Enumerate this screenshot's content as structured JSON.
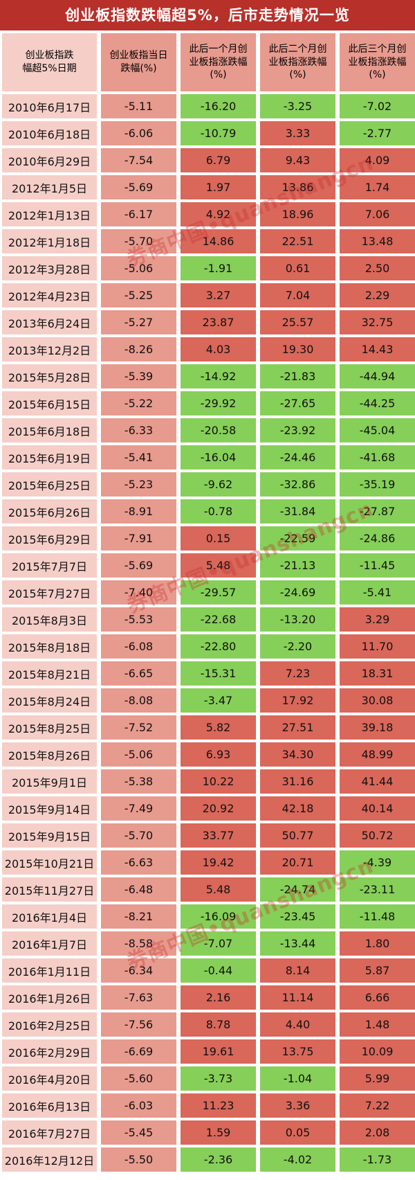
{
  "title": "创业板指数跌幅超5%，后市走势情况一览",
  "headers": [
    "创业板指跌\n幅超5%日期",
    "创业板指当日\n跌幅(%)",
    "此后一个月创\n业板指涨跌幅\n(%)",
    "此后二个月创\n业板指涨跌幅\n(%)",
    "此后三个月创\n业板指涨跌幅\n(%)"
  ],
  "watermark": "券商中国•quanshangcn",
  "colors": {
    "title_bg": "#b8302a",
    "date_cell": "#f5cec7",
    "drop_cell": "#e79a8e",
    "positive_cell": "#d9675a",
    "negative_cell": "#86cf58"
  },
  "rows": [
    {
      "date": "2010年6月17日",
      "drop": "-5.11",
      "m1": "-16.20",
      "m2": "-3.25",
      "m3": "-7.02"
    },
    {
      "date": "2010年6月18日",
      "drop": "-6.06",
      "m1": "-10.79",
      "m2": "3.33",
      "m3": "-2.77"
    },
    {
      "date": "2010年6月29日",
      "drop": "-7.54",
      "m1": "6.79",
      "m2": "9.43",
      "m3": "4.09"
    },
    {
      "date": "2012年1月5日",
      "drop": "-5.69",
      "m1": "1.97",
      "m2": "13.86",
      "m3": "1.74"
    },
    {
      "date": "2012年1月13日",
      "drop": "-6.17",
      "m1": "4.92",
      "m2": "18.96",
      "m3": "7.06"
    },
    {
      "date": "2012年1月18日",
      "drop": "-5.70",
      "m1": "14.86",
      "m2": "22.51",
      "m3": "13.48"
    },
    {
      "date": "2012年3月28日",
      "drop": "-5.06",
      "m1": "-1.91",
      "m2": "0.61",
      "m3": "2.50"
    },
    {
      "date": "2012年4月23日",
      "drop": "-5.25",
      "m1": "3.27",
      "m2": "7.04",
      "m3": "2.29"
    },
    {
      "date": "2013年6月24日",
      "drop": "-5.27",
      "m1": "23.87",
      "m2": "25.57",
      "m3": "32.75"
    },
    {
      "date": "2013年12月2日",
      "drop": "-8.26",
      "m1": "4.03",
      "m2": "19.30",
      "m3": "14.43"
    },
    {
      "date": "2015年5月28日",
      "drop": "-5.39",
      "m1": "-14.92",
      "m2": "-21.83",
      "m3": "-44.94"
    },
    {
      "date": "2015年6月15日",
      "drop": "-5.22",
      "m1": "-29.92",
      "m2": "-27.65",
      "m3": "-44.25"
    },
    {
      "date": "2015年6月18日",
      "drop": "-6.33",
      "m1": "-20.58",
      "m2": "-23.92",
      "m3": "-45.04"
    },
    {
      "date": "2015年6月19日",
      "drop": "-5.41",
      "m1": "-16.04",
      "m2": "-24.46",
      "m3": "-41.68"
    },
    {
      "date": "2015年6月25日",
      "drop": "-5.23",
      "m1": "-9.62",
      "m2": "-32.86",
      "m3": "-35.19"
    },
    {
      "date": "2015年6月26日",
      "drop": "-8.91",
      "m1": "-0.78",
      "m2": "-31.84",
      "m3": "-27.87"
    },
    {
      "date": "2015年6月29日",
      "drop": "-7.91",
      "m1": "0.15",
      "m2": "-22.59",
      "m3": "-24.86"
    },
    {
      "date": "2015年7月7日",
      "drop": "-5.69",
      "m1": "5.48",
      "m2": "-21.13",
      "m3": "-11.45"
    },
    {
      "date": "2015年7月27日",
      "drop": "-7.40",
      "m1": "-29.57",
      "m2": "-24.69",
      "m3": "-5.41"
    },
    {
      "date": "2015年8月3日",
      "drop": "-5.53",
      "m1": "-22.68",
      "m2": "-13.20",
      "m3": "3.29"
    },
    {
      "date": "2015年8月18日",
      "drop": "-6.08",
      "m1": "-22.80",
      "m2": "-2.20",
      "m3": "11.70"
    },
    {
      "date": "2015年8月21日",
      "drop": "-6.65",
      "m1": "-15.31",
      "m2": "7.23",
      "m3": "18.31"
    },
    {
      "date": "2015年8月24日",
      "drop": "-8.08",
      "m1": "-3.47",
      "m2": "17.92",
      "m3": "30.08"
    },
    {
      "date": "2015年8月25日",
      "drop": "-7.52",
      "m1": "5.82",
      "m2": "27.51",
      "m3": "39.18"
    },
    {
      "date": "2015年8月26日",
      "drop": "-5.06",
      "m1": "6.93",
      "m2": "34.30",
      "m3": "48.99"
    },
    {
      "date": "2015年9月1日",
      "drop": "-5.38",
      "m1": "10.22",
      "m2": "31.16",
      "m3": "41.44"
    },
    {
      "date": "2015年9月14日",
      "drop": "-7.49",
      "m1": "20.92",
      "m2": "42.18",
      "m3": "40.14"
    },
    {
      "date": "2015年9月15日",
      "drop": "-5.70",
      "m1": "33.77",
      "m2": "50.77",
      "m3": "50.72"
    },
    {
      "date": "2015年10月21日",
      "drop": "-6.63",
      "m1": "19.42",
      "m2": "20.71",
      "m3": "-4.39"
    },
    {
      "date": "2015年11月27日",
      "drop": "-6.48",
      "m1": "5.48",
      "m2": "-24.74",
      "m3": "-23.11"
    },
    {
      "date": "2016年1月4日",
      "drop": "-8.21",
      "m1": "-16.09",
      "m2": "-23.45",
      "m3": "-11.48"
    },
    {
      "date": "2016年1月7日",
      "drop": "-8.58",
      "m1": "-7.07",
      "m2": "-13.44",
      "m3": "1.80"
    },
    {
      "date": "2016年1月11日",
      "drop": "-6.34",
      "m1": "-0.44",
      "m2": "8.14",
      "m3": "5.87"
    },
    {
      "date": "2016年1月26日",
      "drop": "-7.63",
      "m1": "2.16",
      "m2": "11.14",
      "m3": "6.66"
    },
    {
      "date": "2016年2月25日",
      "drop": "-7.56",
      "m1": "8.78",
      "m2": "4.40",
      "m3": "1.48"
    },
    {
      "date": "2016年2月29日",
      "drop": "-6.69",
      "m1": "19.61",
      "m2": "13.75",
      "m3": "10.09"
    },
    {
      "date": "2016年4月20日",
      "drop": "-5.60",
      "m1": "-3.73",
      "m2": "-1.04",
      "m3": "5.99"
    },
    {
      "date": "2016年6月13日",
      "drop": "-6.03",
      "m1": "11.23",
      "m2": "3.36",
      "m3": "7.22"
    },
    {
      "date": "2016年7月27日",
      "drop": "-5.45",
      "m1": "1.59",
      "m2": "0.05",
      "m3": "2.08"
    },
    {
      "date": "2016年12月12日",
      "drop": "-5.50",
      "m1": "-2.36",
      "m2": "-4.02",
      "m3": "-1.73"
    }
  ]
}
